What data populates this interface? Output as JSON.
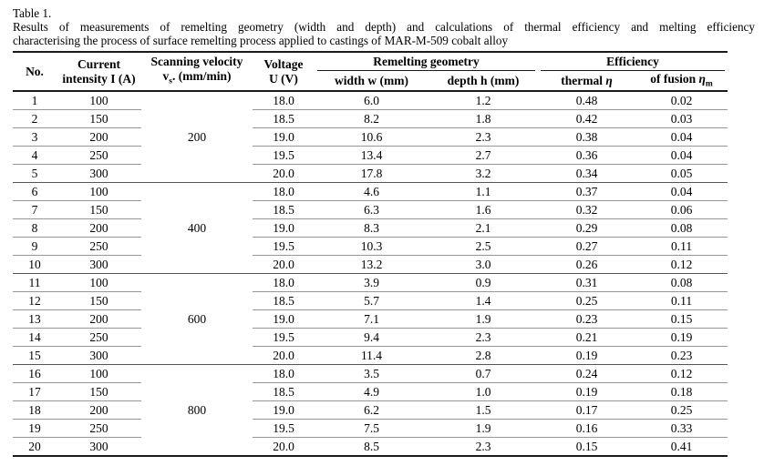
{
  "colors": {
    "background": "#ffffff",
    "text": "#000000",
    "major_rule": "#1a1a1a",
    "row_rule": "#979797"
  },
  "caption": {
    "label": "Table 1.",
    "line1": "Results of measurements of remelting geometry (width and depth) and calculations of thermal efficiency and melting efficiency",
    "line2": "characterising the process of surface remelting process applied to castings of MAR-M-509 cobalt alloy"
  },
  "table": {
    "headers": {
      "no": "No.",
      "current": {
        "line1": "Current",
        "line2": "intensity I (A)"
      },
      "velocity": {
        "line1": "Scanning velocity",
        "v": "v",
        "sub": "s",
        "rest": ". (mm/min)"
      },
      "voltage": {
        "line1": "Voltage",
        "line2": "U (V)"
      },
      "geometry_group": "Remelting geometry",
      "efficiency_group": "Efficiency",
      "width": "width w (mm)",
      "depth": "depth h (mm)",
      "thermal": {
        "text": "thermal ",
        "symbol": "η"
      },
      "fusion": {
        "text": "of fusion ",
        "symbol": "η",
        "sub": "m"
      }
    },
    "groups": [
      {
        "velocity": "200",
        "rows": [
          {
            "no": "1",
            "current": "100",
            "voltage": "18.0",
            "width": "6.0",
            "depth": "1.2",
            "thermal": "0.48",
            "fusion": "0.02"
          },
          {
            "no": "2",
            "current": "150",
            "voltage": "18.5",
            "width": "8.2",
            "depth": "1.8",
            "thermal": "0.42",
            "fusion": "0.03"
          },
          {
            "no": "3",
            "current": "200",
            "voltage": "19.0",
            "width": "10.6",
            "depth": "2.3",
            "thermal": "0.38",
            "fusion": "0.04"
          },
          {
            "no": "4",
            "current": "250",
            "voltage": "19.5",
            "width": "13.4",
            "depth": "2.7",
            "thermal": "0.36",
            "fusion": "0.04"
          },
          {
            "no": "5",
            "current": "300",
            "voltage": "20.0",
            "width": "17.8",
            "depth": "3.2",
            "thermal": "0.34",
            "fusion": "0.05"
          }
        ]
      },
      {
        "velocity": "400",
        "rows": [
          {
            "no": "6",
            "current": "100",
            "voltage": "18.0",
            "width": "4.6",
            "depth": "1.1",
            "thermal": "0.37",
            "fusion": "0.04"
          },
          {
            "no": "7",
            "current": "150",
            "voltage": "18.5",
            "width": "6.3",
            "depth": "1.6",
            "thermal": "0.32",
            "fusion": "0.06"
          },
          {
            "no": "8",
            "current": "200",
            "voltage": "19.0",
            "width": "8.3",
            "depth": "2.1",
            "thermal": "0.29",
            "fusion": "0.08"
          },
          {
            "no": "9",
            "current": "250",
            "voltage": "19.5",
            "width": "10.3",
            "depth": "2.5",
            "thermal": "0.27",
            "fusion": "0.11"
          },
          {
            "no": "10",
            "current": "300",
            "voltage": "20.0",
            "width": "13.2",
            "depth": "3.0",
            "thermal": "0.26",
            "fusion": "0.12"
          }
        ]
      },
      {
        "velocity": "600",
        "rows": [
          {
            "no": "11",
            "current": "100",
            "voltage": "18.0",
            "width": "3.9",
            "depth": "0.9",
            "thermal": "0.31",
            "fusion": "0.08"
          },
          {
            "no": "12",
            "current": "150",
            "voltage": "18.5",
            "width": "5.7",
            "depth": "1.4",
            "thermal": "0.25",
            "fusion": "0.11"
          },
          {
            "no": "13",
            "current": "200",
            "voltage": "19.0",
            "width": "7.1",
            "depth": "1.9",
            "thermal": "0.23",
            "fusion": "0.15"
          },
          {
            "no": "14",
            "current": "250",
            "voltage": "19.5",
            "width": "9.4",
            "depth": "2.3",
            "thermal": "0.21",
            "fusion": "0.19"
          },
          {
            "no": "15",
            "current": "300",
            "voltage": "20.0",
            "width": "11.4",
            "depth": "2.8",
            "thermal": "0.19",
            "fusion": "0.23"
          }
        ]
      },
      {
        "velocity": "800",
        "rows": [
          {
            "no": "16",
            "current": "100",
            "voltage": "18.0",
            "width": "3.5",
            "depth": "0.7",
            "thermal": "0.24",
            "fusion": "0.12"
          },
          {
            "no": "17",
            "current": "150",
            "voltage": "18.5",
            "width": "4.9",
            "depth": "1.0",
            "thermal": "0.19",
            "fusion": "0.18"
          },
          {
            "no": "18",
            "current": "200",
            "voltage": "19.0",
            "width": "6.2",
            "depth": "1.5",
            "thermal": "0.17",
            "fusion": "0.25"
          },
          {
            "no": "19",
            "current": "250",
            "voltage": "19.5",
            "width": "7.5",
            "depth": "1.9",
            "thermal": "0.16",
            "fusion": "0.33"
          },
          {
            "no": "20",
            "current": "300",
            "voltage": "20.0",
            "width": "8.5",
            "depth": "2.3",
            "thermal": "0.15",
            "fusion": "0.41"
          }
        ]
      }
    ]
  }
}
